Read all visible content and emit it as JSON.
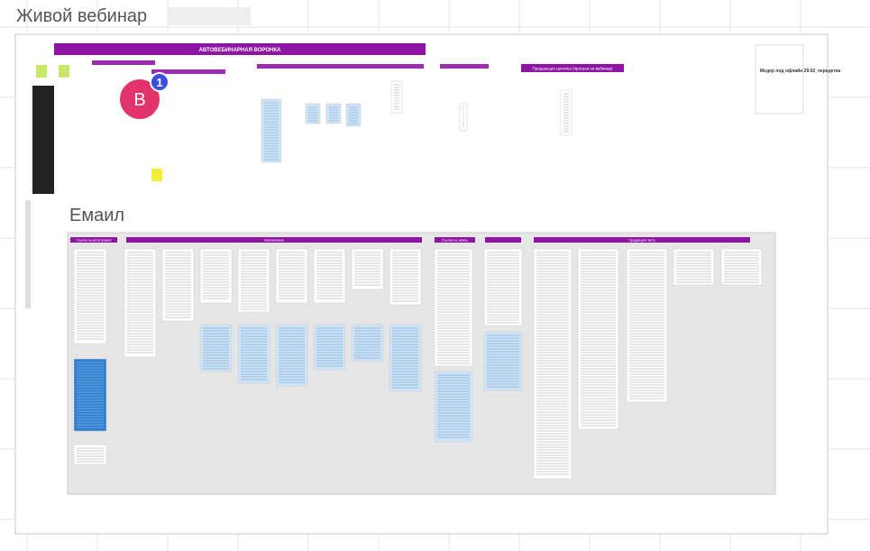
{
  "frames": [
    {
      "title": "Живой вебинар"
    },
    {
      "title": "Емаил"
    }
  ],
  "funnel": {
    "title": "АВТОВЕБИНАРНАЯ ВОРОНКА",
    "subtitle": "Продающая цепочка (прогрев на вебинар)"
  },
  "email_headers": [
    "Ссылка на регистрацию",
    "Напоминания",
    "Ссылка на запись",
    "Продающая часть"
  ],
  "note": {
    "title": "Медер под офлайн 29.02_передетка"
  },
  "collaborator": {
    "initial": "B",
    "badge": "1"
  }
}
